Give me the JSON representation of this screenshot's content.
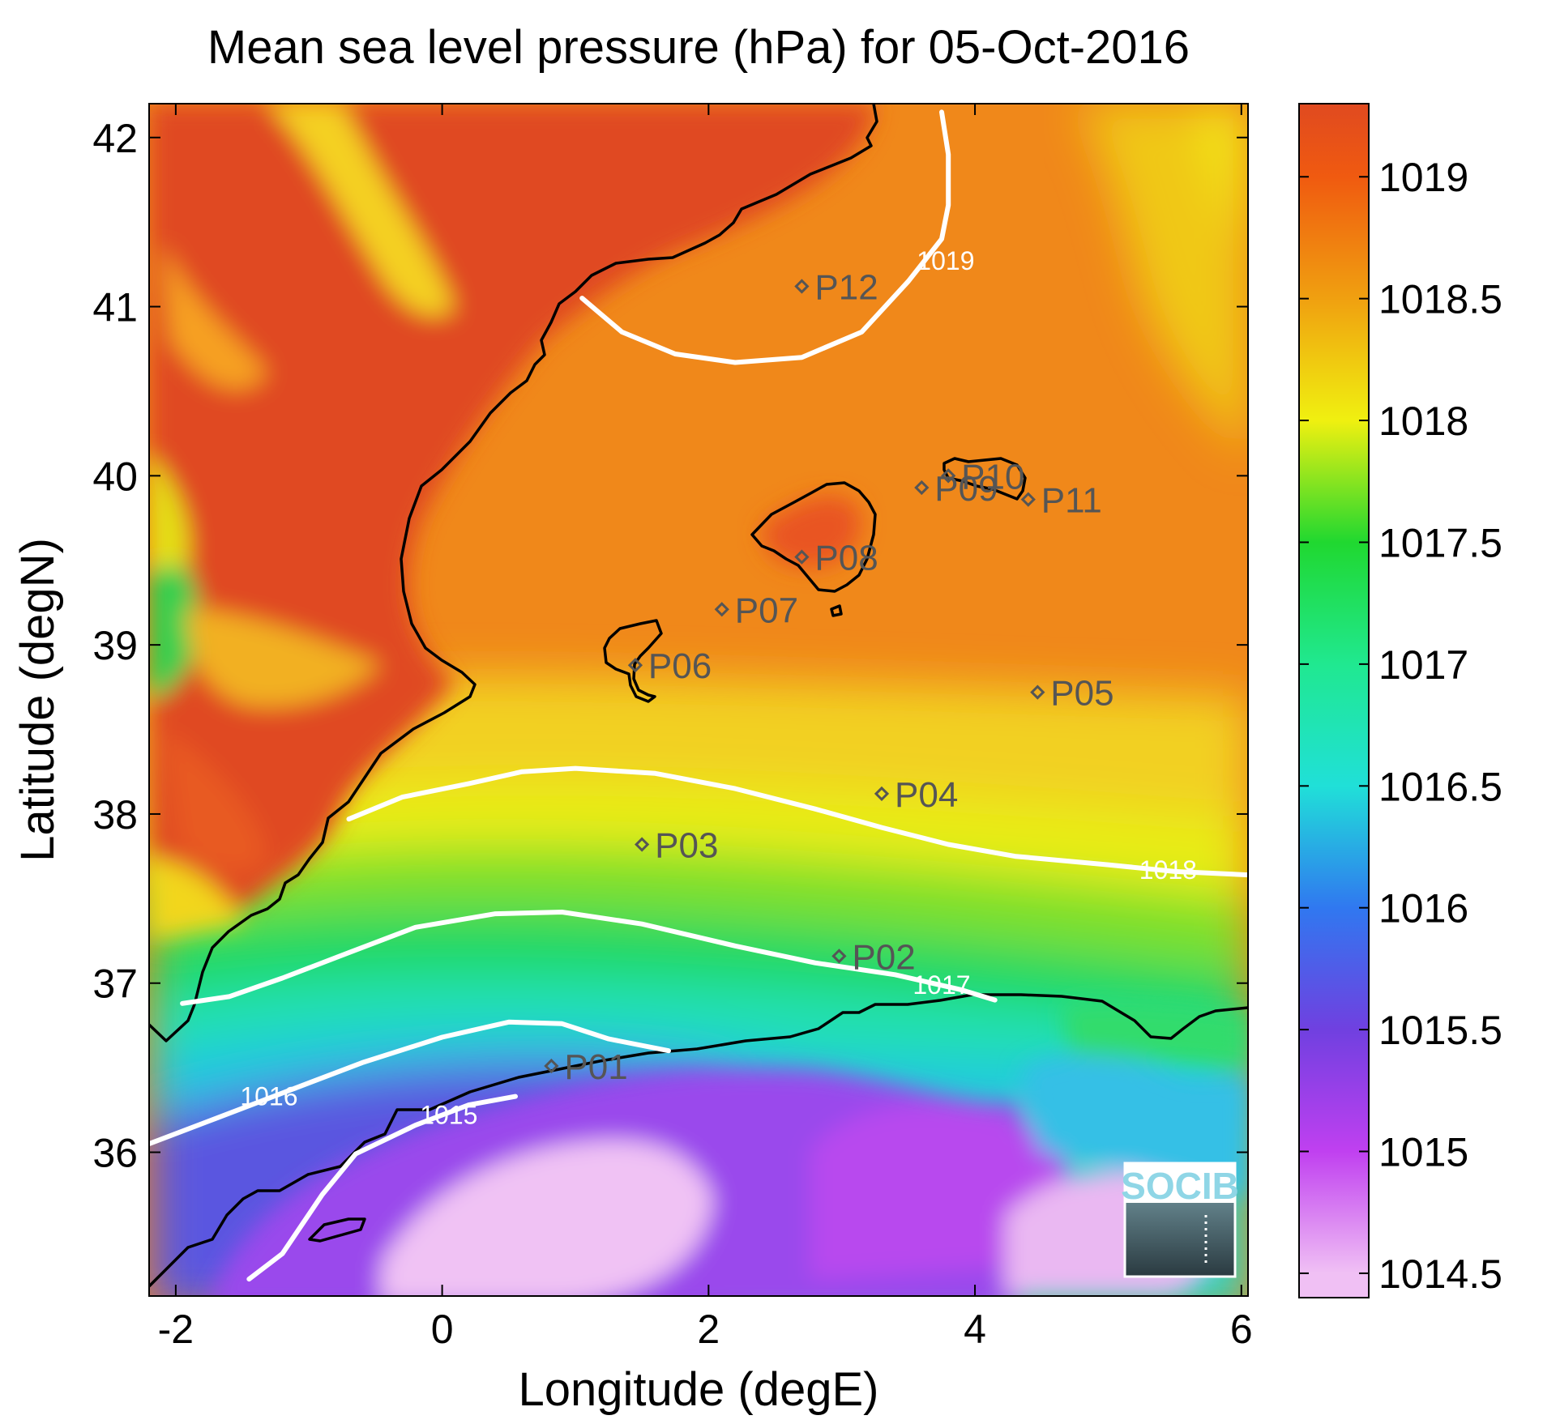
{
  "title": "Mean sea level pressure (hPa) for 05-Oct-2016",
  "logo_text": "SOCIB",
  "chart_data": {
    "type": "heatmap",
    "title": "Mean sea level pressure (hPa) for 05-Oct-2016",
    "xlabel": "Longitude (degE)",
    "ylabel": "Latitude (degN)",
    "xlim": [
      -2.2,
      6.05
    ],
    "ylim": [
      35.15,
      42.2
    ],
    "xticks": [
      -2,
      0,
      2,
      4,
      6
    ],
    "yticks": [
      36,
      37,
      38,
      39,
      40,
      41,
      42
    ],
    "colorbar": {
      "range": [
        1014.4,
        1019.3
      ],
      "ticks": [
        1014.5,
        1015,
        1015.5,
        1016,
        1016.5,
        1017,
        1017.5,
        1018,
        1018.5,
        1019
      ],
      "colors": [
        {
          "value": 1014.5,
          "color": "#f0c0f4"
        },
        {
          "value": 1015.0,
          "color": "#c040f0"
        },
        {
          "value": 1015.5,
          "color": "#7040e0"
        },
        {
          "value": 1016.0,
          "color": "#3078f0"
        },
        {
          "value": 1016.5,
          "color": "#20e0d8"
        },
        {
          "value": 1017.0,
          "color": "#20e890"
        },
        {
          "value": 1017.5,
          "color": "#20d830"
        },
        {
          "value": 1018.0,
          "color": "#f0f010"
        },
        {
          "value": 1018.5,
          "color": "#f0a010"
        },
        {
          "value": 1019.0,
          "color": "#f05a10"
        },
        {
          "value": 1019.3,
          "color": "#e04a20"
        }
      ]
    },
    "contours": [
      {
        "level": 1019,
        "label": "1019",
        "points": [
          [
            3.75,
            42.15
          ],
          [
            3.8,
            41.9
          ],
          [
            3.8,
            41.6
          ],
          [
            3.75,
            41.4
          ],
          [
            3.5,
            41.15
          ],
          [
            3.15,
            40.85
          ],
          [
            2.7,
            40.7
          ],
          [
            2.2,
            40.67
          ],
          [
            1.75,
            40.72
          ],
          [
            1.35,
            40.85
          ],
          [
            1.05,
            41.05
          ]
        ],
        "label_at": [
          3.78,
          41.27
        ]
      },
      {
        "level": 1018,
        "label": "1018",
        "points": [
          [
            -0.7,
            37.97
          ],
          [
            -0.3,
            38.1
          ],
          [
            0.2,
            38.18
          ],
          [
            0.6,
            38.25
          ],
          [
            1.0,
            38.27
          ],
          [
            1.6,
            38.24
          ],
          [
            2.2,
            38.15
          ],
          [
            2.8,
            38.03
          ],
          [
            3.3,
            37.92
          ],
          [
            3.8,
            37.82
          ],
          [
            4.3,
            37.75
          ],
          [
            5.0,
            37.7
          ],
          [
            5.5,
            37.66
          ],
          [
            6.05,
            37.64
          ]
        ],
        "label_at": [
          5.45,
          37.67
        ]
      },
      {
        "level": 1017,
        "label": "1017",
        "points": [
          [
            -1.95,
            36.88
          ],
          [
            -1.6,
            36.92
          ],
          [
            -1.2,
            37.03
          ],
          [
            -0.7,
            37.18
          ],
          [
            -0.2,
            37.33
          ],
          [
            0.4,
            37.41
          ],
          [
            0.9,
            37.42
          ],
          [
            1.5,
            37.35
          ],
          [
            2.2,
            37.22
          ],
          [
            2.8,
            37.12
          ],
          [
            3.4,
            37.05
          ],
          [
            3.9,
            36.96
          ],
          [
            4.15,
            36.9
          ]
        ],
        "label_at": [
          3.75,
          36.99
        ]
      },
      {
        "level": 1016,
        "label": "1016",
        "points": [
          [
            -2.2,
            36.05
          ],
          [
            -1.7,
            36.2
          ],
          [
            -1.2,
            36.35
          ],
          [
            -0.6,
            36.53
          ],
          [
            0.0,
            36.68
          ],
          [
            0.5,
            36.77
          ],
          [
            0.9,
            36.76
          ],
          [
            1.25,
            36.67
          ],
          [
            1.7,
            36.6
          ]
        ],
        "label_at": [
          -1.3,
          36.33
        ]
      },
      {
        "level": 1015,
        "label": "1015",
        "points": [
          [
            -1.45,
            35.25
          ],
          [
            -1.2,
            35.4
          ],
          [
            -0.9,
            35.75
          ],
          [
            -0.65,
            35.99
          ],
          [
            -0.2,
            36.16
          ],
          [
            0.2,
            36.28
          ],
          [
            0.55,
            36.33
          ]
        ],
        "label_at": [
          0.05,
          36.22
        ]
      }
    ],
    "points": [
      {
        "name": "P01",
        "lon": 0.82,
        "lat": 36.51
      },
      {
        "name": "P02",
        "lon": 2.98,
        "lat": 37.16
      },
      {
        "name": "P03",
        "lon": 1.5,
        "lat": 37.82
      },
      {
        "name": "P04",
        "lon": 3.3,
        "lat": 38.12
      },
      {
        "name": "P05",
        "lon": 4.47,
        "lat": 38.72
      },
      {
        "name": "P06",
        "lon": 1.45,
        "lat": 38.88
      },
      {
        "name": "P07",
        "lon": 2.1,
        "lat": 39.21
      },
      {
        "name": "P08",
        "lon": 2.7,
        "lat": 39.52
      },
      {
        "name": "P09",
        "lon": 3.6,
        "lat": 39.93
      },
      {
        "name": "P10",
        "lon": 3.8,
        "lat": 40.0
      },
      {
        "name": "P11",
        "lon": 4.4,
        "lat": 39.86
      },
      {
        "name": "P12",
        "lon": 2.7,
        "lat": 41.12
      }
    ]
  }
}
